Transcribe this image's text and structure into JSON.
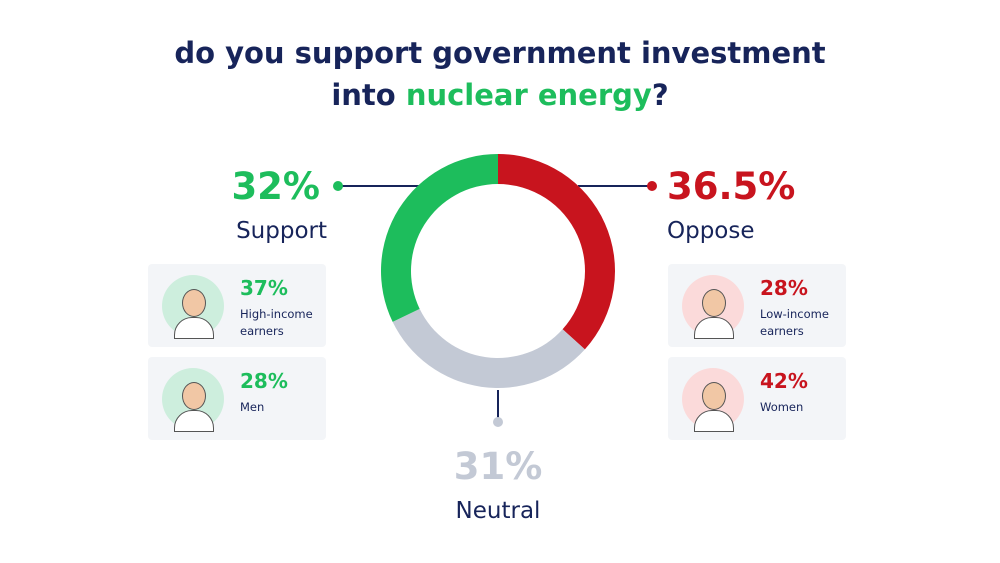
{
  "chart_data": {
    "type": "pie",
    "title": [
      "do you support government investment",
      "into",
      "nuclear energy",
      "?"
    ],
    "categories": [
      "Oppose",
      "Neutral",
      "Support"
    ],
    "values": [
      36.5,
      31,
      32
    ],
    "value_labels": [
      "36.5%",
      "31%",
      "32%"
    ],
    "colors": [
      "#c8141e",
      "#c3c9d5",
      "#1dbd5c"
    ]
  },
  "cards": {
    "support": [
      {
        "percent": "37%",
        "label": "High-income earners"
      },
      {
        "percent": "28%",
        "label": "Men"
      }
    ],
    "oppose": [
      {
        "percent": "28%",
        "label": "Low-income earners"
      },
      {
        "percent": "42%",
        "label": "Women"
      }
    ]
  }
}
